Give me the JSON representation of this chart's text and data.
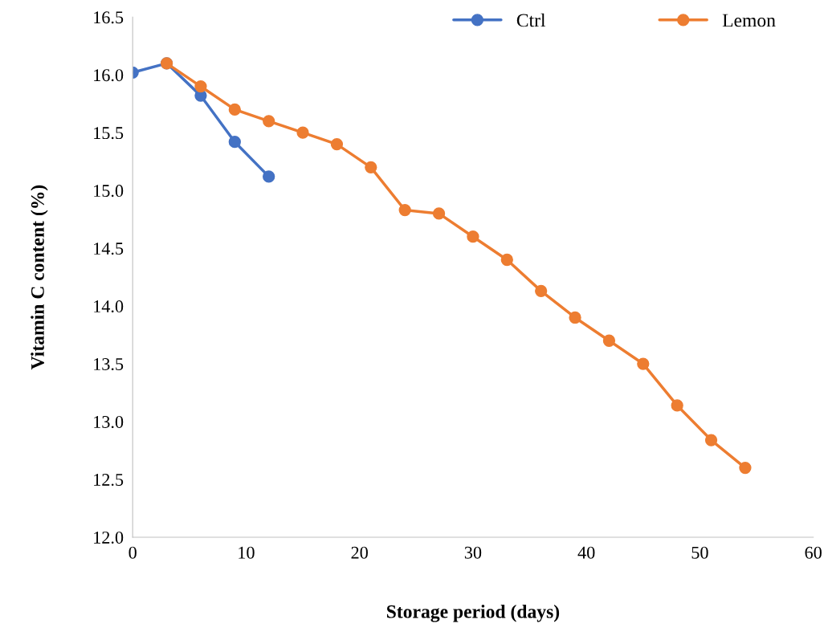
{
  "chart_data": {
    "type": "line",
    "xlabel": "Storage period (days)",
    "ylabel": "Vitamin C content (%)",
    "xlim": [
      0,
      60
    ],
    "xticks": [
      0,
      10,
      20,
      30,
      40,
      50,
      60
    ],
    "ylim": [
      12.0,
      16.5
    ],
    "yticks": [
      {
        "value": 12.0,
        "label": "12.0"
      },
      {
        "value": 12.5,
        "label": "12.5"
      },
      {
        "value": 13.0,
        "label": "13.0"
      },
      {
        "value": 13.5,
        "label": "13.5"
      },
      {
        "value": 14.0,
        "label": "14.0"
      },
      {
        "value": 14.5,
        "label": "14.5"
      },
      {
        "value": 15.0,
        "label": "15.0"
      },
      {
        "value": 15.5,
        "label": "15.5"
      },
      {
        "value": 16.0,
        "label": "16.0"
      },
      {
        "value": 16.5,
        "label": "16.5"
      }
    ],
    "grid": false,
    "legend": "top right",
    "marker": "circle",
    "line_style": "solid",
    "series": [
      {
        "name": "Ctrl",
        "color": "#4472c4",
        "x": [
          0,
          3,
          6,
          9,
          12
        ],
        "values": [
          16.02,
          16.1,
          15.82,
          15.42,
          15.12
        ]
      },
      {
        "name": "Lemon",
        "color": "#ed7d31",
        "x": [
          3,
          6,
          9,
          12,
          15,
          18,
          21,
          24,
          27,
          30,
          33,
          36,
          39,
          42,
          45,
          48,
          51,
          54
        ],
        "values": [
          16.1,
          15.9,
          15.7,
          15.6,
          15.5,
          15.4,
          15.2,
          14.83,
          14.8,
          14.6,
          14.4,
          14.13,
          13.9,
          13.7,
          13.5,
          13.14,
          12.84,
          12.6
        ]
      }
    ]
  }
}
